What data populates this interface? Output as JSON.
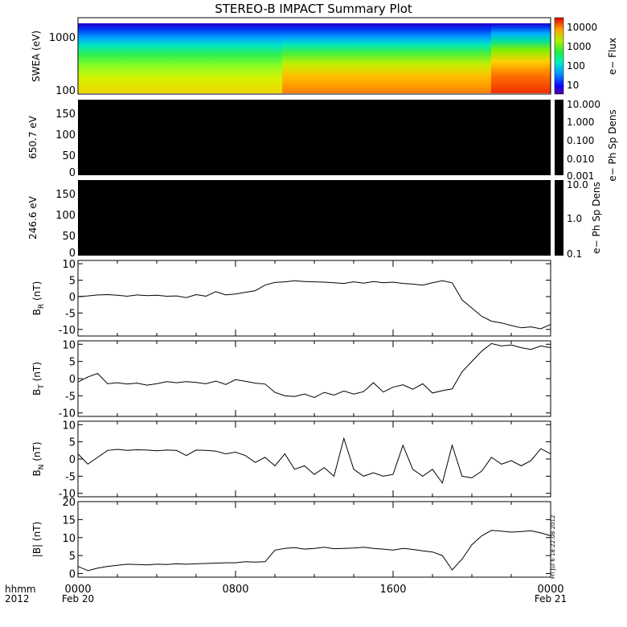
{
  "title": "STEREO-B IMPACT Summary Plot",
  "footer": {
    "row1_label": "hhmm",
    "row2_label": "2012",
    "tick_labels": [
      "0000",
      "0800",
      "1600",
      "0000"
    ],
    "date_start": "Feb 20",
    "date_end": "Feb 21"
  },
  "side_stamp": "Fri Jul 6 18:22:08 2012",
  "colors": {
    "trace": "#000000",
    "panel_fill": "#000000",
    "frame": "#000000"
  },
  "chart_data": [
    {
      "type": "heatmap",
      "ylabel": "SWEA (eV)",
      "y_scale": "log",
      "y_ticks": [
        "1000",
        "100"
      ],
      "colorbar": {
        "label": "e− Flux",
        "ticks": [
          "10000",
          "1000",
          "100",
          "10"
        ],
        "scale": "log",
        "range": [
          3,
          30000
        ]
      },
      "x": [
        "00:00",
        "10:00",
        "22:00",
        "24:00"
      ],
      "description_values": {
        "low_energy_flux_before_1000": 2000,
        "low_energy_flux_after_1000": 8000,
        "low_energy_flux_after_2200": 20000
      }
    },
    {
      "type": "heatmap",
      "ylabel": "650.7 eV",
      "yticks": [
        "150",
        "100",
        "50",
        "0"
      ],
      "ylim": [
        0,
        180
      ],
      "colorbar": {
        "label": "e− Ph Sp Dens",
        "ticks": [
          "10.000",
          "1.000",
          "0.100",
          "0.010",
          "0.001"
        ],
        "scale": "log",
        "range": [
          0.001,
          10
        ]
      }
    },
    {
      "type": "heatmap",
      "ylabel": "246.6 eV",
      "yticks": [
        "150",
        "100",
        "50",
        "0"
      ],
      "ylim": [
        0,
        180
      ],
      "colorbar": {
        "label": "e− Ph Sp Dens",
        "ticks": [
          "10.0",
          "1.0",
          "0.1"
        ],
        "scale": "log",
        "range": [
          0.1,
          10
        ]
      }
    },
    {
      "type": "line",
      "ylabel_main": "B",
      "ylabel_sub": "R",
      "ylabel_unit": " (nT)",
      "ylim": [
        -12,
        11
      ],
      "yticks": [
        "10",
        "5",
        "0",
        "-5",
        "-10"
      ],
      "x": [
        0,
        0.5,
        1,
        1.5,
        2,
        2.5,
        3,
        3.5,
        4,
        4.5,
        5,
        5.5,
        6,
        6.5,
        7,
        7.5,
        8,
        8.5,
        9,
        9.5,
        10,
        10.5,
        11,
        11.5,
        12,
        12.5,
        13,
        13.5,
        14,
        14.5,
        15,
        15.5,
        16,
        16.5,
        17,
        17.5,
        18,
        18.5,
        19,
        19.5,
        20,
        20.5,
        21,
        21.5,
        22,
        22.5,
        23,
        23.5,
        24
      ],
      "values": [
        0,
        0.2,
        0.5,
        0.6,
        0.4,
        0.1,
        0.5,
        0.3,
        0.4,
        0.1,
        0.2,
        -0.3,
        0.6,
        0.1,
        1.5,
        0.5,
        0.8,
        1.3,
        1.8,
        3.5,
        4.3,
        4.5,
        4.8,
        4.6,
        4.5,
        4.4,
        4.2,
        4.0,
        4.5,
        4.1,
        4.6,
        4.2,
        4.4,
        4.0,
        3.8,
        3.5,
        4.2,
        4.8,
        4.2,
        -1.0,
        -3.5,
        -6.0,
        -7.5,
        -8.0,
        -8.8,
        -9.5,
        -9.2,
        -9.8,
        -8.5
      ]
    },
    {
      "type": "line",
      "ylabel_main": "B",
      "ylabel_sub": "T",
      "ylabel_unit": " (nT)",
      "ylim": [
        -11,
        11
      ],
      "yticks": [
        "10",
        "5",
        "0",
        "-5",
        "-10"
      ],
      "x": [
        0,
        0.5,
        1,
        1.5,
        2,
        2.5,
        3,
        3.5,
        4,
        4.5,
        5,
        5.5,
        6,
        6.5,
        7,
        7.5,
        8,
        8.5,
        9,
        9.5,
        10,
        10.5,
        11,
        11.5,
        12,
        12.5,
        13,
        13.5,
        14,
        14.5,
        15,
        15.5,
        16,
        16.5,
        17,
        17.5,
        18,
        18.5,
        19,
        19.5,
        20,
        20.5,
        21,
        21.5,
        22,
        22.5,
        23,
        23.5,
        24
      ],
      "values": [
        -1.0,
        0.5,
        1.5,
        -1.5,
        -1.2,
        -1.6,
        -1.3,
        -1.9,
        -1.5,
        -0.9,
        -1.2,
        -0.9,
        -1.1,
        -1.5,
        -0.7,
        -1.7,
        -0.3,
        -0.8,
        -1.3,
        -1.6,
        -4.0,
        -5.0,
        -5.2,
        -4.5,
        -5.5,
        -4.0,
        -4.8,
        -3.6,
        -4.5,
        -3.8,
        -1.2,
        -3.9,
        -2.5,
        -1.8,
        -3.1,
        -1.5,
        -4.2,
        -3.5,
        -3.0,
        2.0,
        5.0,
        8.0,
        10.2,
        9.5,
        9.8,
        9.0,
        8.5,
        9.5,
        9.0
      ]
    },
    {
      "type": "line",
      "ylabel_main": "B",
      "ylabel_sub": "N",
      "ylabel_unit": " (nT)",
      "ylim": [
        -11,
        11
      ],
      "yticks": [
        "10",
        "5",
        "0",
        "-5",
        "-10"
      ],
      "x": [
        0,
        0.5,
        1,
        1.5,
        2,
        2.5,
        3,
        3.5,
        4,
        4.5,
        5,
        5.5,
        6,
        6.5,
        7,
        7.5,
        8,
        8.5,
        9,
        9.5,
        10,
        10.5,
        11,
        11.5,
        12,
        12.5,
        13,
        13.5,
        14,
        14.5,
        15,
        15.5,
        16,
        16.5,
        17,
        17.5,
        18,
        18.5,
        19,
        19.5,
        20,
        20.5,
        21,
        21.5,
        22,
        22.5,
        23,
        23.5,
        24
      ],
      "values": [
        1.5,
        -1.5,
        0.5,
        2.5,
        2.8,
        2.5,
        2.7,
        2.6,
        2.4,
        2.6,
        2.5,
        1.0,
        2.6,
        2.5,
        2.3,
        1.5,
        2.0,
        1.0,
        -1.0,
        0.5,
        -2.0,
        1.5,
        -3.0,
        -2.0,
        -4.5,
        -2.5,
        -5.0,
        6.0,
        -3.0,
        -5.0,
        -4.0,
        -5.0,
        -4.5,
        4.0,
        -3.0,
        -5.0,
        -3.0,
        -7.0,
        4.0,
        -5.0,
        -5.5,
        -3.5,
        0.5,
        -1.5,
        -0.5,
        -2.0,
        -0.5,
        3.0,
        1.5
      ]
    },
    {
      "type": "line",
      "ylabel": "|B| (nT)",
      "ylim": [
        -1,
        20
      ],
      "yticks": [
        "20",
        "15",
        "10",
        "5",
        "0"
      ],
      "x": [
        0,
        0.5,
        1,
        1.5,
        2,
        2.5,
        3,
        3.5,
        4,
        4.5,
        5,
        5.5,
        6,
        6.5,
        7,
        7.5,
        8,
        8.5,
        9,
        9.5,
        10,
        10.5,
        11,
        11.5,
        12,
        12.5,
        13,
        13.5,
        14,
        14.5,
        15,
        15.5,
        16,
        16.5,
        17,
        17.5,
        18,
        18.5,
        19,
        19.5,
        20,
        20.5,
        21,
        21.5,
        22,
        22.5,
        23,
        23.5,
        24
      ],
      "values": [
        2.0,
        0.8,
        1.5,
        2.0,
        2.3,
        2.6,
        2.5,
        2.4,
        2.6,
        2.5,
        2.7,
        2.6,
        2.7,
        2.8,
        2.9,
        3.0,
        3.0,
        3.3,
        3.2,
        3.3,
        6.5,
        7.0,
        7.2,
        6.8,
        7.0,
        7.3,
        6.9,
        7.0,
        7.1,
        7.3,
        7.0,
        6.8,
        6.5,
        7.0,
        6.7,
        6.3,
        6.0,
        5.0,
        1.0,
        4.0,
        8.0,
        10.5,
        12.0,
        11.8,
        11.5,
        11.7,
        11.9,
        11.3,
        10.5
      ]
    }
  ]
}
